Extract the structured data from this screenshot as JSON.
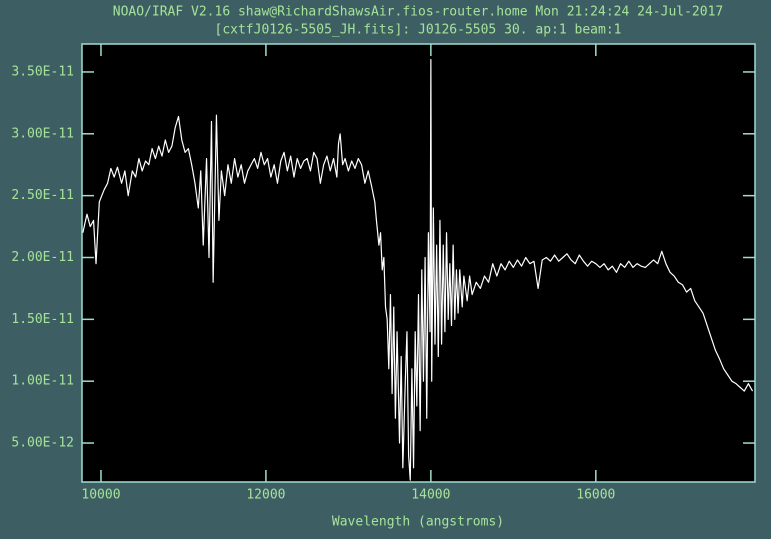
{
  "chart_data": {
    "type": "line",
    "title": "NOAO/IRAF V2.16 shaw@RichardShawsAir.fios-router.home Mon 21:24:24 24-Jul-2017",
    "subtitle": "[cxtfJ0126-5505_JH.fits]: J0126-5505 30. ap:1 beam:1",
    "x_label": "Wavelength (angstroms)",
    "xlim": [
      9770,
      17930
    ],
    "ylim": [
      1.85e-12,
      3.726e-11
    ],
    "xticks": [
      10000,
      12000,
      14000,
      16000
    ],
    "yticks": [
      {
        "value": 5e-12,
        "label": "5.00E-12"
      },
      {
        "value": 1e-11,
        "label": "1.00E-11"
      },
      {
        "value": 1.5e-11,
        "label": "1.50E-11"
      },
      {
        "value": 2e-11,
        "label": "2.00E-11"
      },
      {
        "value": 2.5e-11,
        "label": "2.50E-11"
      },
      {
        "value": 3e-11,
        "label": "3.00E-11"
      },
      {
        "value": 3.5e-11,
        "label": "3.50E-11"
      }
    ],
    "color": "#ffffff",
    "x": [
      9780,
      9830,
      9870,
      9910,
      9940,
      9980,
      10040,
      10080,
      10120,
      10160,
      10200,
      10250,
      10290,
      10330,
      10380,
      10420,
      10460,
      10500,
      10540,
      10580,
      10620,
      10660,
      10700,
      10740,
      10780,
      10820,
      10860,
      10900,
      10940,
      10980,
      11020,
      11060,
      11100,
      11140,
      11180,
      11210,
      11240,
      11280,
      11310,
      11340,
      11360,
      11400,
      11430,
      11460,
      11500,
      11540,
      11580,
      11620,
      11660,
      11700,
      11740,
      11780,
      11820,
      11860,
      11900,
      11940,
      11980,
      12020,
      12060,
      12100,
      12140,
      12180,
      12220,
      12260,
      12300,
      12340,
      12380,
      12420,
      12460,
      12500,
      12540,
      12580,
      12620,
      12660,
      12700,
      12740,
      12780,
      12820,
      12860,
      12880,
      12900,
      12930,
      12960,
      13000,
      13040,
      13080,
      13120,
      13160,
      13200,
      13240,
      13280,
      13320,
      13340,
      13370,
      13390,
      13410,
      13430,
      13450,
      13470,
      13490,
      13510,
      13530,
      13550,
      13570,
      13590,
      13620,
      13640,
      13660,
      13690,
      13710,
      13730,
      13750,
      13770,
      13790,
      13810,
      13830,
      13850,
      13870,
      13890,
      13910,
      13930,
      13950,
      13970,
      13990,
      14000,
      14010,
      14030,
      14050,
      14070,
      14090,
      14110,
      14130,
      14150,
      14170,
      14190,
      14210,
      14230,
      14250,
      14270,
      14290,
      14310,
      14330,
      14350,
      14380,
      14400,
      14440,
      14470,
      14500,
      14550,
      14600,
      14650,
      14700,
      14750,
      14800,
      14850,
      14900,
      14950,
      15000,
      15050,
      15100,
      15150,
      15200,
      15250,
      15300,
      15350,
      15400,
      15450,
      15500,
      15550,
      15600,
      15650,
      15700,
      15750,
      15800,
      15850,
      15900,
      15950,
      16000,
      16050,
      16100,
      16150,
      16200,
      16250,
      16300,
      16350,
      16400,
      16450,
      16500,
      16550,
      16600,
      16650,
      16700,
      16750,
      16800,
      16850,
      16900,
      16950,
      17000,
      17050,
      17100,
      17150,
      17200,
      17250,
      17300,
      17350,
      17400,
      17450,
      17500,
      17550,
      17600,
      17650,
      17700,
      17750,
      17800,
      17850,
      17900
    ],
    "values": [
      2.2e-11,
      2.35e-11,
      2.25e-11,
      2.3e-11,
      1.95e-11,
      2.45e-11,
      2.55e-11,
      2.6e-11,
      2.72e-11,
      2.65e-11,
      2.73e-11,
      2.6e-11,
      2.7e-11,
      2.5e-11,
      2.7e-11,
      2.65e-11,
      2.8e-11,
      2.7e-11,
      2.78e-11,
      2.75e-11,
      2.88e-11,
      2.8e-11,
      2.9e-11,
      2.82e-11,
      2.95e-11,
      2.85e-11,
      2.9e-11,
      3.05e-11,
      3.14e-11,
      2.95e-11,
      2.85e-11,
      2.88e-11,
      2.75e-11,
      2.6e-11,
      2.4e-11,
      2.7e-11,
      2.1e-11,
      2.8e-11,
      2e-11,
      3.1e-11,
      1.8e-11,
      3.15e-11,
      2.3e-11,
      2.7e-11,
      2.5e-11,
      2.75e-11,
      2.6e-11,
      2.8e-11,
      2.65e-11,
      2.75e-11,
      2.6e-11,
      2.7e-11,
      2.75e-11,
      2.8e-11,
      2.72e-11,
      2.85e-11,
      2.75e-11,
      2.8e-11,
      2.65e-11,
      2.75e-11,
      2.6e-11,
      2.78e-11,
      2.85e-11,
      2.7e-11,
      2.82e-11,
      2.65e-11,
      2.8e-11,
      2.72e-11,
      2.78e-11,
      2.8e-11,
      2.7e-11,
      2.85e-11,
      2.8e-11,
      2.6e-11,
      2.75e-11,
      2.82e-11,
      2.7e-11,
      2.8e-11,
      2.65e-11,
      2.92e-11,
      3e-11,
      2.75e-11,
      2.8e-11,
      2.7e-11,
      2.78e-11,
      2.72e-11,
      2.8e-11,
      2.75e-11,
      2.6e-11,
      2.7e-11,
      2.58e-11,
      2.45e-11,
      2.3e-11,
      2.1e-11,
      2.2e-11,
      1.9e-11,
      2e-11,
      1.6e-11,
      1.5e-11,
      1.1e-11,
      1.7e-11,
      9e-12,
      1.6e-11,
      7e-12,
      1.4e-11,
      5e-12,
      1.2e-11,
      3e-12,
      1e-11,
      1.4e-11,
      4e-12,
      2e-12,
      1.1e-11,
      3e-12,
      1.4e-11,
      8e-12,
      1.7e-11,
      6e-12,
      1.9e-11,
      1e-11,
      2e-11,
      7e-12,
      2.2e-11,
      1.4e-11,
      3.6e-11,
      1e-11,
      2.4e-11,
      1.3e-11,
      2.1e-11,
      1.2e-11,
      2.3e-11,
      1.3e-11,
      2.1e-11,
      1.4e-11,
      2.2e-11,
      1.5e-11,
      1.95e-11,
      1.45e-11,
      2.1e-11,
      1.5e-11,
      1.9e-11,
      1.55e-11,
      1.9e-11,
      1.6e-11,
      1.85e-11,
      1.65e-11,
      1.85e-11,
      1.7e-11,
      1.8e-11,
      1.75e-11,
      1.85e-11,
      1.8e-11,
      1.95e-11,
      1.85e-11,
      1.95e-11,
      1.9e-11,
      1.97e-11,
      1.92e-11,
      1.98e-11,
      1.93e-11,
      2e-11,
      1.95e-11,
      1.97e-11,
      1.75e-11,
      1.98e-11,
      2e-11,
      1.97e-11,
      2.02e-11,
      1.97e-11,
      2e-11,
      2.03e-11,
      1.98e-11,
      1.95e-11,
      2.02e-11,
      1.97e-11,
      1.93e-11,
      1.97e-11,
      1.95e-11,
      1.92e-11,
      1.95e-11,
      1.9e-11,
      1.93e-11,
      1.88e-11,
      1.95e-11,
      1.92e-11,
      1.97e-11,
      1.92e-11,
      1.95e-11,
      1.93e-11,
      1.92e-11,
      1.95e-11,
      1.98e-11,
      1.95e-11,
      2.05e-11,
      1.95e-11,
      1.88e-11,
      1.85e-11,
      1.8e-11,
      1.78e-11,
      1.72e-11,
      1.75e-11,
      1.65e-11,
      1.6e-11,
      1.55e-11,
      1.45e-11,
      1.35e-11,
      1.25e-11,
      1.18e-11,
      1.1e-11,
      1.05e-11,
      1e-11,
      9.8e-12,
      9.5e-12,
      9.2e-12,
      9.8e-12,
      9.2e-12
    ]
  }
}
